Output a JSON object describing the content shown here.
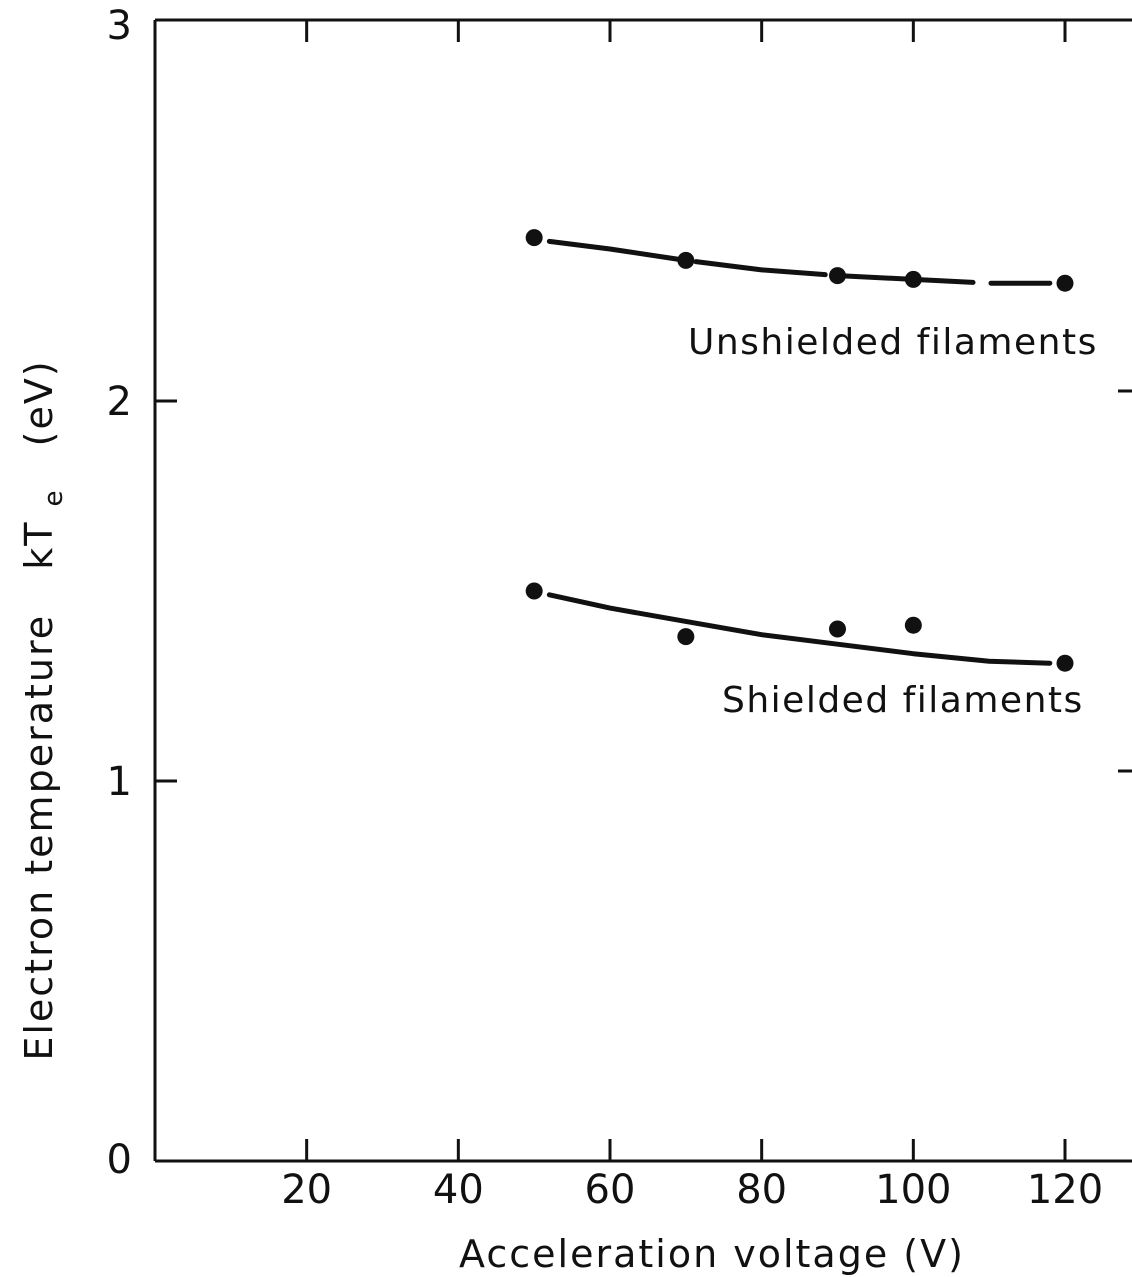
{
  "chart_data": {
    "type": "scatter",
    "xlabel": "Acceleration voltage (V)",
    "ylabel": "Electron temperature",
    "ylabel_symbol": "kT",
    "ylabel_subscript": "e",
    "ylabel_unit": "(eV)",
    "xlim": [
      0,
      120
    ],
    "ylim": [
      0,
      3
    ],
    "x_ticks": [
      20,
      40,
      60,
      80,
      100,
      120
    ],
    "x_tick_labels": [
      "20",
      "40",
      "60",
      "80",
      "100",
      "120"
    ],
    "y_ticks": [
      0,
      1,
      2,
      3
    ],
    "y_tick_labels": [
      "0",
      "1",
      "2",
      "3"
    ],
    "grid": false,
    "series": [
      {
        "name": "Unshielded filaments",
        "x": [
          50,
          70,
          90,
          100,
          120
        ],
        "y": [
          2.43,
          2.37,
          2.33,
          2.32,
          2.31
        ],
        "fit_x": [
          52,
          60,
          70,
          80,
          90,
          100,
          110,
          118
        ],
        "fit_y": [
          2.42,
          2.4,
          2.37,
          2.345,
          2.33,
          2.32,
          2.31,
          2.31
        ],
        "line_style": "dashed"
      },
      {
        "name": "Shielded filaments",
        "x": [
          50,
          70,
          90,
          100,
          120
        ],
        "y": [
          1.5,
          1.38,
          1.4,
          1.41,
          1.31
        ],
        "fit_x": [
          52,
          60,
          70,
          80,
          90,
          100,
          110,
          118
        ],
        "fit_y": [
          1.49,
          1.455,
          1.42,
          1.385,
          1.36,
          1.335,
          1.315,
          1.31
        ],
        "line_style": "solid"
      }
    ]
  }
}
